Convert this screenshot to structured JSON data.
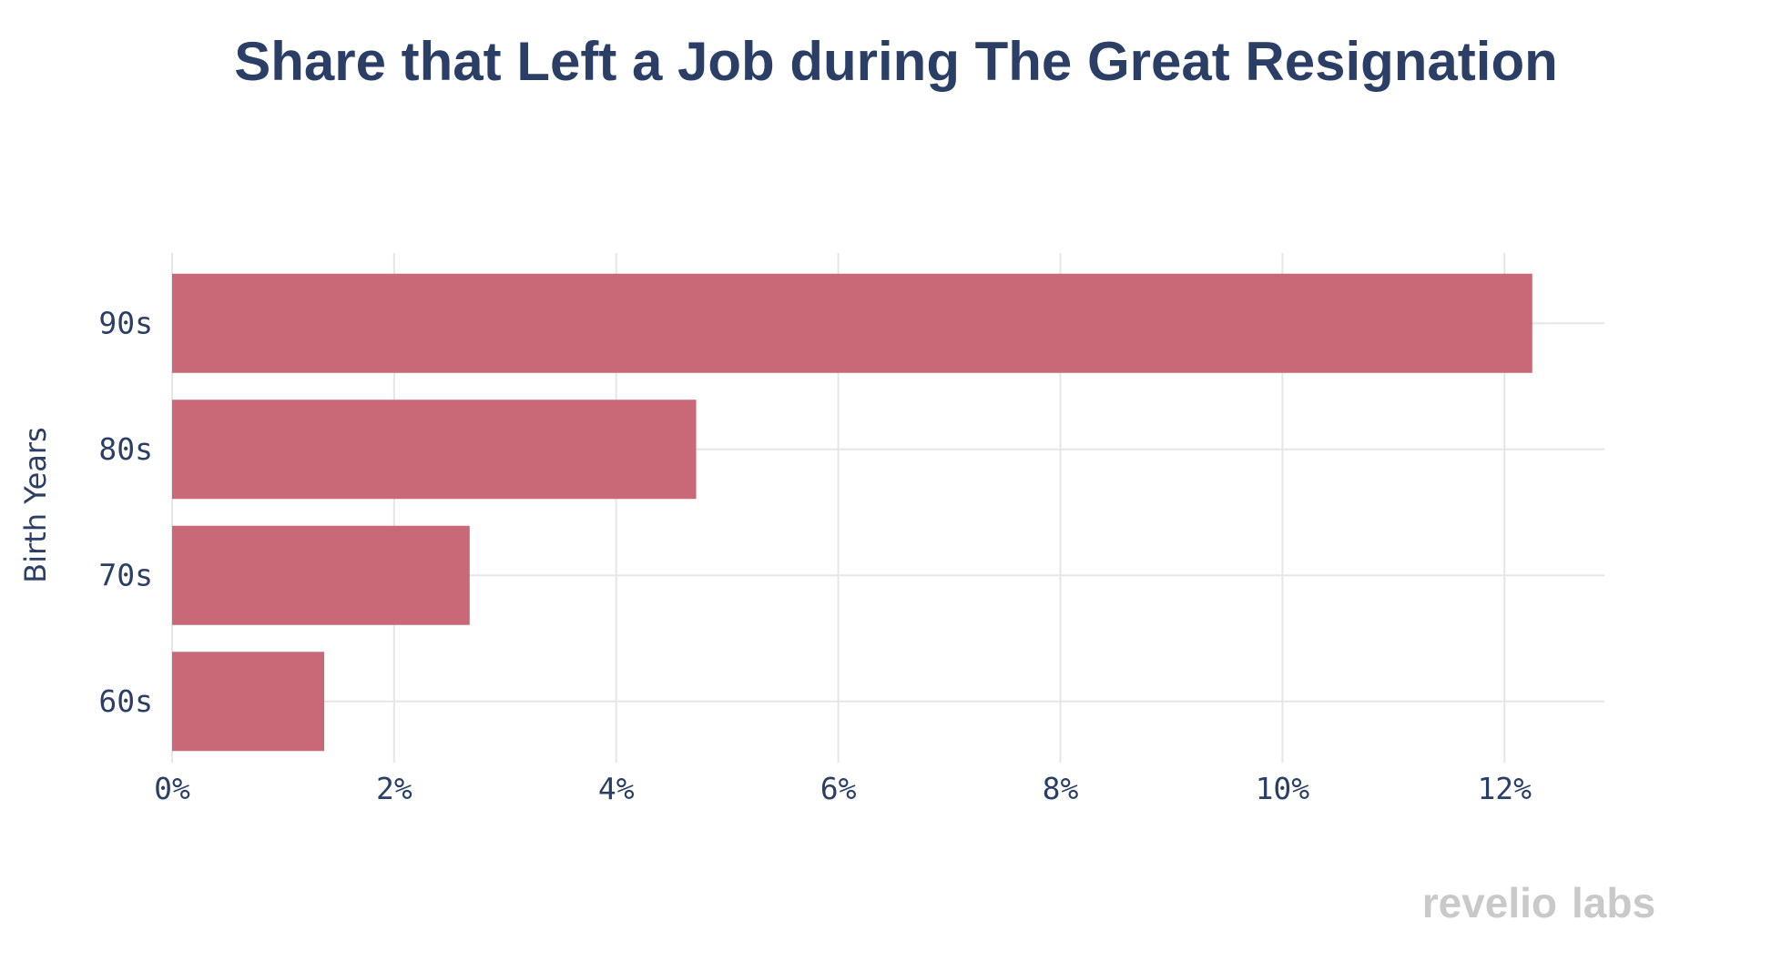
{
  "chart_data": {
    "type": "bar",
    "orientation": "horizontal",
    "title": "Share that Left a Job during The Great Resignation",
    "ylabel": "Birth Years",
    "xlabel": "",
    "categories": [
      "90s",
      "80s",
      "70s",
      "60s"
    ],
    "values": [
      12.25,
      4.72,
      2.68,
      1.37
    ],
    "value_unit": "%",
    "xlim": [
      0,
      12.9
    ],
    "xticks": [
      0,
      2,
      4,
      6,
      8,
      10,
      12
    ],
    "xtick_labels": [
      "0%",
      "2%",
      "4%",
      "6%",
      "8%",
      "10%",
      "12%"
    ],
    "grid": true,
    "bar_color": "#c96978"
  },
  "branding": {
    "logo_text_1": "revelio",
    "logo_text_2": "labs",
    "logo_color": "#c9c9c9"
  }
}
